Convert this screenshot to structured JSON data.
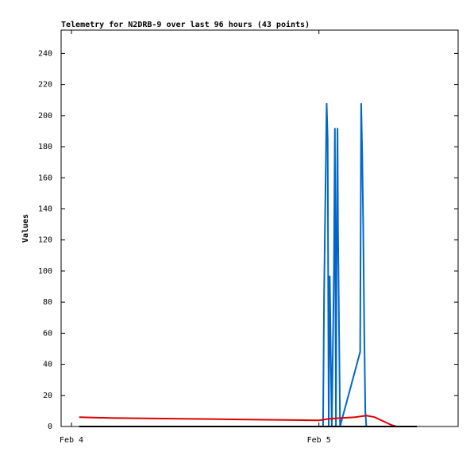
{
  "chart_data": {
    "type": "line",
    "title": "Telemetry for N2DRB-9 over last 96 hours (43 points)",
    "ylabel": "Values",
    "xlim": [
      -1,
      37.5
    ],
    "xticks": [
      {
        "value": 0,
        "label": "Feb 4"
      },
      {
        "value": 24,
        "label": "Feb 5"
      }
    ],
    "ylim": [
      0,
      255
    ],
    "yticks": [
      0,
      20,
      40,
      60,
      80,
      100,
      120,
      140,
      160,
      180,
      200,
      220,
      240
    ],
    "series": [
      {
        "color": "#0066cc",
        "x": [
          24.4,
          24.5,
          24.6,
          24.75,
          24.85,
          24.95,
          25.05,
          25.15,
          25.25,
          25.45,
          25.55,
          25.65,
          25.7,
          25.8,
          25.85,
          25.95,
          26.05,
          28.0,
          28.1,
          28.2,
          28.3,
          28.4,
          28.5,
          28.6
        ],
        "values": [
          0,
          85,
          135,
          208,
          185,
          0,
          97,
          48,
          0,
          97,
          192,
          0,
          97,
          192,
          128,
          65,
          0,
          48,
          208,
          175,
          128,
          60,
          10,
          0
        ]
      },
      {
        "color": "#dd0000",
        "x": [
          0.75,
          3.7,
          10.6,
          17.2,
          24,
          25,
          27.5,
          28.6,
          29.4,
          31,
          31.5
        ],
        "values": [
          6,
          5.5,
          5,
          4.5,
          4,
          5,
          6,
          7,
          6,
          1,
          0
        ]
      },
      {
        "color": "#000000",
        "x": [
          0.75,
          12,
          24,
          29,
          33.5
        ],
        "values": [
          0,
          0,
          0,
          0,
          0
        ]
      }
    ]
  }
}
